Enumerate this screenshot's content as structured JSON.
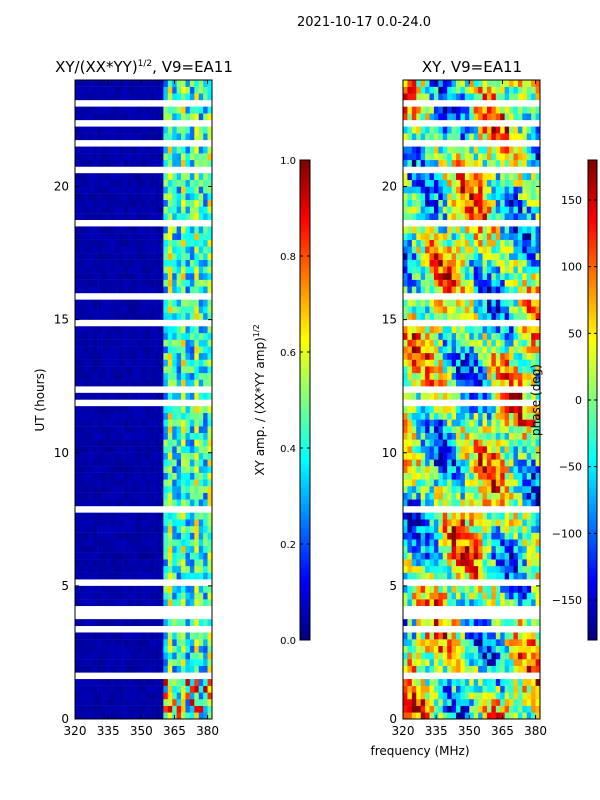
{
  "figure": {
    "suptitle": "2021-10-17 0.0-24.0",
    "xlabel": "frequency (MHz)"
  },
  "chart_data": [
    {
      "type": "heatmap",
      "panel": "left",
      "title": "XY/(XX*YY)",
      "title_exponent": "1/2",
      "title_suffix": ", V9=EA11",
      "ylabel": "UT (hours)",
      "xlim": [
        320,
        382
      ],
      "ylim": [
        0,
        24
      ],
      "xticks": [
        320,
        335,
        350,
        365,
        380
      ],
      "yticks": [
        0,
        5,
        10,
        15,
        20
      ],
      "colormap": "jet",
      "colorbar": {
        "label": "XY amp. / (XX*YY amp)",
        "label_exponent": "1/2",
        "range": [
          0.0,
          1.0
        ],
        "ticks": [
          "0.0",
          "0.2",
          "0.4",
          "0.6",
          "0.8",
          "1.0"
        ]
      }
    },
    {
      "type": "heatmap",
      "panel": "right",
      "title": "XY, V9=EA11",
      "ylabel": "",
      "xlim": [
        320,
        382
      ],
      "ylim": [
        0,
        24
      ],
      "xticks": [
        320,
        335,
        350,
        365,
        380
      ],
      "yticks": [
        0,
        5,
        10,
        15,
        20
      ],
      "colormap": "jet",
      "colorbar": {
        "label": "phase (deg)",
        "range": [
          -180,
          180
        ],
        "ticks": [
          "−150",
          "−100",
          "−50",
          "0",
          "50",
          "100",
          "150"
        ]
      }
    }
  ]
}
